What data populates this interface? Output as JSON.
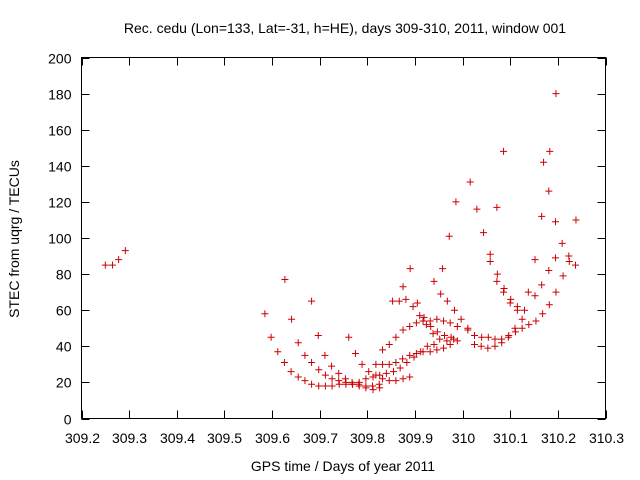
{
  "chart_data": {
    "type": "scatter",
    "title": "Rec. cedu (Lon=133, Lat=-31, h=HE), days 309-310, 2011, window 001",
    "xlabel": "GPS time / Days of year 2011",
    "ylabel": "STEC from uqrg / TECUs",
    "xlim": [
      309.2,
      310.3
    ],
    "ylim": [
      0,
      200
    ],
    "x_ticks": [
      309.2,
      309.3,
      309.4,
      309.5,
      309.6,
      309.7,
      309.8,
      309.9,
      310,
      310.1,
      310.2,
      310.3
    ],
    "x_tick_labels": [
      "309.2",
      "309.3",
      "309.4",
      "309.5",
      "309.6",
      "309.7",
      "309.8",
      "309.9",
      "310",
      "310.1",
      "310.2",
      "310.3"
    ],
    "y_ticks": [
      0,
      20,
      40,
      60,
      80,
      100,
      120,
      140,
      160,
      180,
      200
    ],
    "y_tick_labels": [
      "0",
      "20",
      "40",
      "60",
      "80",
      "100",
      "120",
      "140",
      "160",
      "180",
      "200"
    ],
    "marker": "plus",
    "color": "#cc0000",
    "grid": false,
    "points": [
      {
        "x": 309.25,
        "y": 85
      },
      {
        "x": 309.265,
        "y": 85
      },
      {
        "x": 309.278,
        "y": 88
      },
      {
        "x": 309.292,
        "y": 93
      },
      {
        "x": 309.585,
        "y": 58
      },
      {
        "x": 309.598,
        "y": 45
      },
      {
        "x": 309.612,
        "y": 37
      },
      {
        "x": 309.626,
        "y": 31
      },
      {
        "x": 309.64,
        "y": 26
      },
      {
        "x": 309.655,
        "y": 23
      },
      {
        "x": 309.669,
        "y": 21
      },
      {
        "x": 309.683,
        "y": 19
      },
      {
        "x": 309.698,
        "y": 18
      },
      {
        "x": 309.712,
        "y": 18
      },
      {
        "x": 309.726,
        "y": 18
      },
      {
        "x": 309.741,
        "y": 19
      },
      {
        "x": 309.755,
        "y": 19
      },
      {
        "x": 309.769,
        "y": 19
      },
      {
        "x": 309.783,
        "y": 20
      },
      {
        "x": 309.797,
        "y": 22
      },
      {
        "x": 309.812,
        "y": 23
      },
      {
        "x": 309.826,
        "y": 24
      },
      {
        "x": 309.84,
        "y": 25
      },
      {
        "x": 309.855,
        "y": 26
      },
      {
        "x": 309.869,
        "y": 28
      },
      {
        "x": 309.883,
        "y": 31
      },
      {
        "x": 309.898,
        "y": 34
      },
      {
        "x": 309.912,
        "y": 37
      },
      {
        "x": 309.926,
        "y": 40
      },
      {
        "x": 309.94,
        "y": 41
      },
      {
        "x": 309.627,
        "y": 77
      },
      {
        "x": 309.641,
        "y": 55
      },
      {
        "x": 309.655,
        "y": 42
      },
      {
        "x": 309.669,
        "y": 35
      },
      {
        "x": 309.683,
        "y": 31
      },
      {
        "x": 309.698,
        "y": 27
      },
      {
        "x": 309.712,
        "y": 24
      },
      {
        "x": 309.726,
        "y": 22
      },
      {
        "x": 309.74,
        "y": 21
      },
      {
        "x": 309.755,
        "y": 20
      },
      {
        "x": 309.769,
        "y": 19
      },
      {
        "x": 309.783,
        "y": 18
      },
      {
        "x": 309.797,
        "y": 17
      },
      {
        "x": 309.812,
        "y": 16
      },
      {
        "x": 309.826,
        "y": 17
      },
      {
        "x": 309.683,
        "y": 65
      },
      {
        "x": 309.697,
        "y": 46
      },
      {
        "x": 309.711,
        "y": 35
      },
      {
        "x": 309.725,
        "y": 29
      },
      {
        "x": 309.74,
        "y": 25
      },
      {
        "x": 309.754,
        "y": 22
      },
      {
        "x": 309.768,
        "y": 20
      },
      {
        "x": 309.782,
        "y": 19
      },
      {
        "x": 309.797,
        "y": 18
      },
      {
        "x": 309.811,
        "y": 18
      },
      {
        "x": 309.825,
        "y": 19
      },
      {
        "x": 309.761,
        "y": 45
      },
      {
        "x": 309.775,
        "y": 36
      },
      {
        "x": 309.789,
        "y": 30
      },
      {
        "x": 309.803,
        "y": 26
      },
      {
        "x": 309.818,
        "y": 24
      },
      {
        "x": 309.832,
        "y": 22
      },
      {
        "x": 309.846,
        "y": 21
      },
      {
        "x": 309.86,
        "y": 21
      },
      {
        "x": 309.875,
        "y": 22
      },
      {
        "x": 309.889,
        "y": 23
      },
      {
        "x": 309.818,
        "y": 30
      },
      {
        "x": 309.832,
        "y": 30
      },
      {
        "x": 309.846,
        "y": 30
      },
      {
        "x": 309.86,
        "y": 31
      },
      {
        "x": 309.874,
        "y": 33
      },
      {
        "x": 309.889,
        "y": 35
      },
      {
        "x": 309.903,
        "y": 36
      },
      {
        "x": 309.917,
        "y": 37
      },
      {
        "x": 309.932,
        "y": 37
      },
      {
        "x": 309.946,
        "y": 38
      },
      {
        "x": 309.96,
        "y": 39
      },
      {
        "x": 309.974,
        "y": 41
      },
      {
        "x": 309.989,
        "y": 43
      },
      {
        "x": 309.832,
        "y": 38
      },
      {
        "x": 309.846,
        "y": 41
      },
      {
        "x": 309.86,
        "y": 45
      },
      {
        "x": 309.875,
        "y": 49
      },
      {
        "x": 309.889,
        "y": 51
      },
      {
        "x": 309.903,
        "y": 53
      },
      {
        "x": 309.917,
        "y": 54
      },
      {
        "x": 309.932,
        "y": 54
      },
      {
        "x": 309.946,
        "y": 55
      },
      {
        "x": 309.96,
        "y": 54
      },
      {
        "x": 309.974,
        "y": 53
      },
      {
        "x": 309.989,
        "y": 51
      },
      {
        "x": 309.853,
        "y": 65
      },
      {
        "x": 309.867,
        "y": 65
      },
      {
        "x": 309.881,
        "y": 66
      },
      {
        "x": 309.896,
        "y": 62
      },
      {
        "x": 309.91,
        "y": 57
      },
      {
        "x": 309.924,
        "y": 52
      },
      {
        "x": 309.938,
        "y": 47
      },
      {
        "x": 309.952,
        "y": 44
      },
      {
        "x": 309.967,
        "y": 43
      },
      {
        "x": 309.981,
        "y": 44
      },
      {
        "x": 309.875,
        "y": 73
      },
      {
        "x": 309.89,
        "y": 83
      },
      {
        "x": 309.905,
        "y": 64
      },
      {
        "x": 309.919,
        "y": 56
      },
      {
        "x": 309.933,
        "y": 51
      },
      {
        "x": 309.947,
        "y": 48
      },
      {
        "x": 309.962,
        "y": 46
      },
      {
        "x": 309.976,
        "y": 45
      },
      {
        "x": 309.94,
        "y": 76
      },
      {
        "x": 309.954,
        "y": 69
      },
      {
        "x": 309.968,
        "y": 65
      },
      {
        "x": 309.983,
        "y": 60
      },
      {
        "x": 309.997,
        "y": 55
      },
      {
        "x": 310.011,
        "y": 50
      },
      {
        "x": 310.025,
        "y": 46
      },
      {
        "x": 310.04,
        "y": 45
      },
      {
        "x": 310.054,
        "y": 45
      },
      {
        "x": 310.068,
        "y": 44
      },
      {
        "x": 310.082,
        "y": 44
      },
      {
        "x": 310.097,
        "y": 46
      },
      {
        "x": 310.111,
        "y": 48
      },
      {
        "x": 310.125,
        "y": 50
      },
      {
        "x": 310.139,
        "y": 52
      },
      {
        "x": 310.154,
        "y": 54
      },
      {
        "x": 310.168,
        "y": 58
      },
      {
        "x": 310.182,
        "y": 63
      },
      {
        "x": 310.196,
        "y": 70
      },
      {
        "x": 310.211,
        "y": 79
      },
      {
        "x": 309.958,
        "y": 83
      },
      {
        "x": 309.972,
        "y": 101
      },
      {
        "x": 309.986,
        "y": 120
      },
      {
        "x": 310.011,
        "y": 49
      },
      {
        "x": 310.025,
        "y": 41
      },
      {
        "x": 310.039,
        "y": 40
      },
      {
        "x": 310.053,
        "y": 39
      },
      {
        "x": 310.068,
        "y": 40
      },
      {
        "x": 310.082,
        "y": 42
      },
      {
        "x": 310.096,
        "y": 45
      },
      {
        "x": 310.11,
        "y": 50
      },
      {
        "x": 310.125,
        "y": 55
      },
      {
        "x": 310.016,
        "y": 131
      },
      {
        "x": 310.03,
        "y": 116
      },
      {
        "x": 310.044,
        "y": 103
      },
      {
        "x": 310.058,
        "y": 91
      },
      {
        "x": 310.073,
        "y": 80
      },
      {
        "x": 310.087,
        "y": 72
      },
      {
        "x": 310.101,
        "y": 66
      },
      {
        "x": 310.115,
        "y": 62
      },
      {
        "x": 310.13,
        "y": 60
      },
      {
        "x": 310.072,
        "y": 117
      },
      {
        "x": 310.086,
        "y": 148
      },
      {
        "x": 310.058,
        "y": 87
      },
      {
        "x": 310.072,
        "y": 76
      },
      {
        "x": 310.086,
        "y": 70
      },
      {
        "x": 310.1,
        "y": 64
      },
      {
        "x": 310.115,
        "y": 60
      },
      {
        "x": 310.138,
        "y": 70
      },
      {
        "x": 310.152,
        "y": 88
      },
      {
        "x": 310.166,
        "y": 112
      },
      {
        "x": 310.17,
        "y": 142
      },
      {
        "x": 310.181,
        "y": 126
      },
      {
        "x": 310.183,
        "y": 148
      },
      {
        "x": 310.195,
        "y": 109
      },
      {
        "x": 310.209,
        "y": 97
      },
      {
        "x": 310.223,
        "y": 90
      },
      {
        "x": 310.237,
        "y": 85
      },
      {
        "x": 310.152,
        "y": 68
      },
      {
        "x": 310.166,
        "y": 74
      },
      {
        "x": 310.181,
        "y": 82
      },
      {
        "x": 310.195,
        "y": 89
      },
      {
        "x": 310.224,
        "y": 87
      },
      {
        "x": 310.238,
        "y": 110
      },
      {
        "x": 310.196,
        "y": 180
      }
    ]
  }
}
